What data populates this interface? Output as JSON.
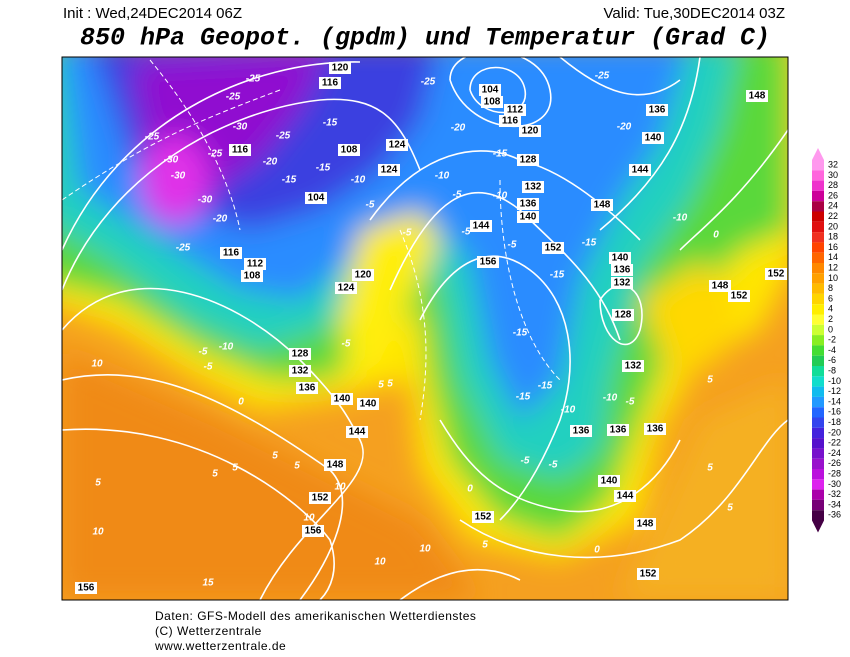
{
  "header": {
    "init": "Init : Wed,24DEC2014 06Z",
    "valid": "Valid: Tue,30DEC2014 03Z",
    "title": "850 hPa Geopot. (gpdm) und Temperatur (Grad C)"
  },
  "geopotential_labels": [
    120,
    116,
    104,
    108,
    112,
    116,
    120,
    128,
    132,
    136,
    140,
    144,
    136,
    140,
    144,
    148,
    148,
    108,
    124,
    124,
    104,
    116,
    112,
    108,
    116,
    120,
    124,
    128,
    132,
    136,
    140,
    140,
    144,
    148,
    152,
    156,
    156,
    152,
    156,
    140,
    136,
    132,
    128,
    132,
    136,
    136,
    136,
    140,
    144,
    148,
    152,
    152,
    148,
    152,
    152
  ],
  "temperature_labels": [
    -25,
    -25,
    -30,
    -25,
    -30,
    -30,
    -25,
    -25,
    -20,
    -15,
    -30,
    -20,
    -25,
    -15,
    -15,
    -10,
    -5,
    -10,
    -5,
    -15,
    -10,
    -5,
    -5,
    -5,
    -25,
    -20,
    -25,
    -20,
    -10,
    0,
    -15,
    -15,
    -15,
    -15,
    -15,
    -10,
    -10,
    -5,
    -5,
    -5,
    -5,
    -10,
    -5,
    0,
    -5,
    5,
    5,
    10,
    5,
    5,
    5,
    5,
    5,
    10,
    10,
    10,
    10,
    5,
    0,
    5,
    5,
    5,
    10,
    15,
    0
  ],
  "color_scale": {
    "ticks": [
      32,
      30,
      28,
      26,
      24,
      22,
      20,
      18,
      16,
      14,
      12,
      10,
      8,
      6,
      4,
      2,
      0,
      -2,
      -4,
      -6,
      -8,
      -10,
      -12,
      -14,
      -16,
      -18,
      -20,
      -22,
      -24,
      -26,
      -28,
      -30,
      -32,
      -34,
      -36
    ],
    "colors": [
      "#ff99ee",
      "#ff66dd",
      "#ee33cc",
      "#cc0099",
      "#aa0044",
      "#cc0000",
      "#e01010",
      "#f03020",
      "#ff4400",
      "#ff6600",
      "#ff8800",
      "#ffa000",
      "#ffbb00",
      "#ffd500",
      "#ffee00",
      "#ffff33",
      "#ccff33",
      "#88ee22",
      "#44dd33",
      "#22cc55",
      "#11dd99",
      "#11ddcc",
      "#11bbee",
      "#2299ff",
      "#2266ff",
      "#3344ee",
      "#4422dd",
      "#5511cc",
      "#7711cc",
      "#9911cc",
      "#bb11dd",
      "#dd22ee",
      "#aa00aa",
      "#770077",
      "#440044"
    ]
  },
  "footer": [
    "Daten: GFS-Modell des amerikanischen Wetterdienstes",
    "(C) Wetterzentrale",
    "www.wetterzentrale.de"
  ]
}
